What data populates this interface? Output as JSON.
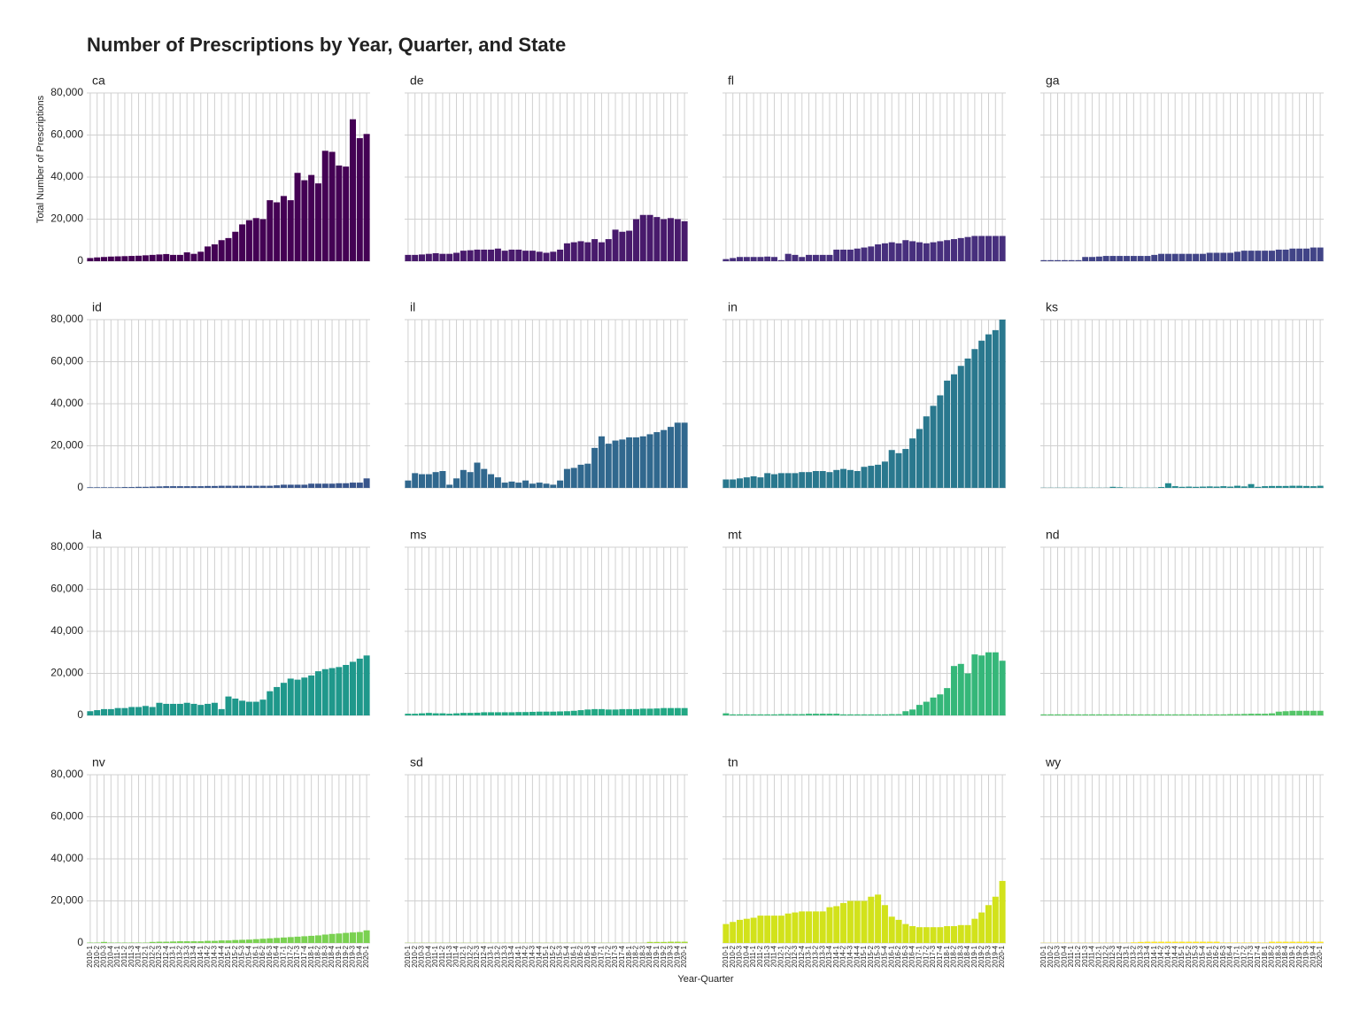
{
  "chart_data": {
    "type": "bar",
    "title": "Number of Prescriptions by Year, Quarter, and State",
    "x_label": "Year-Quarter",
    "y_label": "Total Number of Prescriptions",
    "categories": [
      "2010-1",
      "2010-2",
      "2010-3",
      "2010-4",
      "2011-1",
      "2011-2",
      "2011-3",
      "2011-4",
      "2012-1",
      "2012-2",
      "2012-3",
      "2012-4",
      "2013-1",
      "2013-2",
      "2013-3",
      "2013-4",
      "2014-1",
      "2014-2",
      "2014-3",
      "2014-4",
      "2015-1",
      "2015-2",
      "2015-3",
      "2015-4",
      "2016-1",
      "2016-2",
      "2016-3",
      "2016-4",
      "2017-1",
      "2017-2",
      "2017-3",
      "2017-4",
      "2018-1",
      "2018-2",
      "2018-3",
      "2018-4",
      "2019-1",
      "2019-2",
      "2019-3",
      "2019-4",
      "2020-1"
    ],
    "ylim": [
      0,
      80000
    ],
    "yticks": [
      {
        "value": 0,
        "label": "0"
      },
      {
        "value": 20000,
        "label": "20,000"
      },
      {
        "value": 40000,
        "label": "40,000"
      },
      {
        "value": 60000,
        "label": "60,000"
      },
      {
        "value": 80000,
        "label": "80,000"
      }
    ],
    "grid": true,
    "series": [
      {
        "name": "ca",
        "color": "#440154",
        "values": [
          1500,
          1800,
          2000,
          2200,
          2300,
          2400,
          2500,
          2600,
          2800,
          3000,
          3200,
          3400,
          3000,
          3000,
          4200,
          3500,
          4500,
          7000,
          8000,
          10000,
          11000,
          14000,
          17500,
          19500,
          20500,
          20000,
          29000,
          28000,
          31000,
          29000,
          42000,
          38500,
          41000,
          37000,
          52500,
          52000,
          45500,
          45000,
          67500,
          58500,
          60500
        ]
      },
      {
        "name": "de",
        "color": "#481a6c",
        "values": [
          3000,
          3000,
          3200,
          3500,
          3800,
          3500,
          3500,
          4000,
          5000,
          5200,
          5500,
          5500,
          5500,
          6000,
          5000,
          5500,
          5500,
          5000,
          5000,
          4500,
          4000,
          4500,
          5500,
          8500,
          9000,
          9500,
          9000,
          10500,
          9000,
          10500,
          15000,
          14000,
          14500,
          20000,
          22000,
          22000,
          21000,
          20000,
          20500,
          20000,
          19000
        ]
      },
      {
        "name": "fl",
        "color": "#472f7d",
        "values": [
          1000,
          1500,
          2000,
          2000,
          2000,
          2000,
          2200,
          2000,
          500,
          3500,
          3000,
          2000,
          3000,
          3000,
          3000,
          3000,
          5500,
          5500,
          5500,
          6000,
          6500,
          7000,
          8000,
          8500,
          9000,
          8500,
          10000,
          9500,
          9000,
          8500,
          9000,
          9500,
          10000,
          10500,
          11000,
          11500,
          12000,
          12000,
          12000,
          12000,
          12000
        ]
      },
      {
        "name": "ga",
        "color": "#414487",
        "values": [
          500,
          500,
          500,
          500,
          500,
          500,
          2000,
          2000,
          2200,
          2500,
          2500,
          2500,
          2500,
          2500,
          2500,
          2500,
          3000,
          3500,
          3500,
          3500,
          3500,
          3500,
          3500,
          3500,
          4000,
          4000,
          4000,
          4000,
          4500,
          5000,
          5000,
          5000,
          5000,
          5000,
          5500,
          5500,
          6000,
          6000,
          6000,
          6500,
          6500
        ]
      },
      {
        "name": "id",
        "color": "#39568c",
        "values": [
          300,
          300,
          300,
          300,
          300,
          400,
          400,
          500,
          500,
          600,
          700,
          800,
          800,
          800,
          800,
          800,
          800,
          900,
          900,
          1000,
          1000,
          1000,
          1000,
          1000,
          1000,
          1000,
          1000,
          1200,
          1500,
          1500,
          1500,
          1500,
          2000,
          2000,
          2000,
          2000,
          2200,
          2200,
          2500,
          2500,
          4500
        ]
      },
      {
        "name": "il",
        "color": "#31688e",
        "values": [
          3500,
          7000,
          6500,
          6500,
          7500,
          8000,
          1500,
          4500,
          8500,
          7500,
          12000,
          9000,
          6500,
          5000,
          2500,
          3000,
          2500,
          3500,
          2000,
          2500,
          2000,
          1500,
          3500,
          9000,
          9500,
          11000,
          11500,
          19000,
          24500,
          21000,
          22500,
          23000,
          24000,
          24000,
          24500,
          25500,
          26500,
          27500,
          29000,
          31000,
          31000
        ]
      },
      {
        "name": "in",
        "color": "#2a788e",
        "values": [
          4000,
          4000,
          4500,
          5000,
          5500,
          5000,
          7000,
          6500,
          7000,
          7000,
          7000,
          7500,
          7500,
          8000,
          8000,
          7500,
          8500,
          9000,
          8500,
          8000,
          10000,
          10500,
          11000,
          12500,
          18000,
          16500,
          18500,
          23500,
          28000,
          34000,
          39000,
          44000,
          51000,
          54000,
          58000,
          61500,
          66000,
          70000,
          73000,
          75000,
          80000
        ]
      },
      {
        "name": "ks",
        "color": "#23888e",
        "values": [
          100,
          100,
          100,
          100,
          100,
          100,
          100,
          100,
          100,
          100,
          500,
          300,
          100,
          100,
          100,
          100,
          100,
          400,
          2200,
          800,
          500,
          600,
          500,
          600,
          700,
          600,
          800,
          600,
          1000,
          700,
          1800,
          500,
          800,
          900,
          900,
          900,
          1000,
          1000,
          900,
          800,
          1000
        ]
      },
      {
        "name": "la",
        "color": "#1f988b",
        "values": [
          2000,
          2500,
          3000,
          3000,
          3500,
          3500,
          4000,
          4000,
          4500,
          4000,
          6000,
          5500,
          5500,
          5500,
          6000,
          5500,
          5000,
          5500,
          6000,
          3000,
          9000,
          8000,
          7000,
          6500,
          6500,
          7500,
          11500,
          13500,
          15500,
          17500,
          17000,
          18000,
          19000,
          21000,
          22000,
          22500,
          23000,
          24000,
          25500,
          27000,
          28500
        ]
      },
      {
        "name": "ms",
        "color": "#22a884",
        "values": [
          800,
          800,
          1000,
          1200,
          1000,
          1000,
          800,
          1000,
          1200,
          1200,
          1300,
          1500,
          1500,
          1500,
          1500,
          1500,
          1600,
          1600,
          1700,
          1800,
          1800,
          1800,
          1900,
          2000,
          2200,
          2500,
          2800,
          3000,
          3000,
          2800,
          2800,
          3000,
          3000,
          3000,
          3200,
          3200,
          3300,
          3500,
          3500,
          3500,
          3500
        ]
      },
      {
        "name": "mt",
        "color": "#35b779",
        "values": [
          1000,
          500,
          500,
          500,
          500,
          500,
          500,
          500,
          600,
          600,
          600,
          600,
          800,
          800,
          800,
          800,
          800,
          500,
          500,
          500,
          500,
          500,
          500,
          500,
          600,
          600,
          2000,
          2800,
          5000,
          6500,
          8500,
          10000,
          13000,
          23500,
          24500,
          20000,
          29000,
          28500,
          30000,
          30000,
          26000
        ]
      },
      {
        "name": "nd",
        "color": "#54c568",
        "values": [
          500,
          500,
          500,
          500,
          500,
          500,
          500,
          500,
          500,
          500,
          500,
          500,
          500,
          500,
          500,
          500,
          500,
          500,
          500,
          500,
          500,
          500,
          500,
          500,
          500,
          500,
          500,
          600,
          600,
          700,
          800,
          800,
          800,
          1000,
          1800,
          2000,
          2200,
          2200,
          2200,
          2200,
          2200
        ]
      },
      {
        "name": "nv",
        "color": "#7ad151",
        "values": [
          200,
          200,
          500,
          200,
          200,
          200,
          200,
          200,
          200,
          500,
          600,
          600,
          700,
          800,
          800,
          800,
          800,
          1000,
          1000,
          1200,
          1200,
          1400,
          1500,
          1600,
          1800,
          2000,
          2200,
          2400,
          2600,
          2800,
          3000,
          3200,
          3400,
          3600,
          4000,
          4300,
          4500,
          4800,
          5000,
          5200,
          6000
        ]
      },
      {
        "name": "sd",
        "color": "#a5db36",
        "values": [
          100,
          100,
          100,
          100,
          100,
          100,
          100,
          100,
          100,
          100,
          100,
          100,
          100,
          100,
          100,
          100,
          100,
          100,
          100,
          100,
          100,
          100,
          100,
          100,
          100,
          100,
          100,
          100,
          100,
          100,
          100,
          100,
          100,
          100,
          100,
          500,
          500,
          500,
          600,
          600,
          600
        ]
      },
      {
        "name": "tn",
        "color": "#d2e21b",
        "values": [
          9000,
          10000,
          11000,
          11500,
          12000,
          13000,
          13000,
          13000,
          13000,
          14000,
          14500,
          15000,
          15000,
          15000,
          15000,
          17000,
          17500,
          19000,
          20000,
          20000,
          20000,
          22000,
          23000,
          18000,
          12500,
          11000,
          9000,
          8000,
          7500,
          7500,
          7500,
          7500,
          8000,
          8000,
          8500,
          8500,
          11500,
          14500,
          18000,
          22000,
          29500
        ]
      },
      {
        "name": "wy",
        "color": "#fde725",
        "values": [
          100,
          100,
          100,
          100,
          100,
          100,
          100,
          100,
          100,
          100,
          100,
          100,
          100,
          300,
          500,
          600,
          600,
          600,
          600,
          600,
          600,
          600,
          600,
          600,
          600,
          600,
          200,
          200,
          200,
          200,
          200,
          200,
          200,
          600,
          600,
          600,
          600,
          600,
          600,
          600,
          600
        ]
      }
    ]
  }
}
